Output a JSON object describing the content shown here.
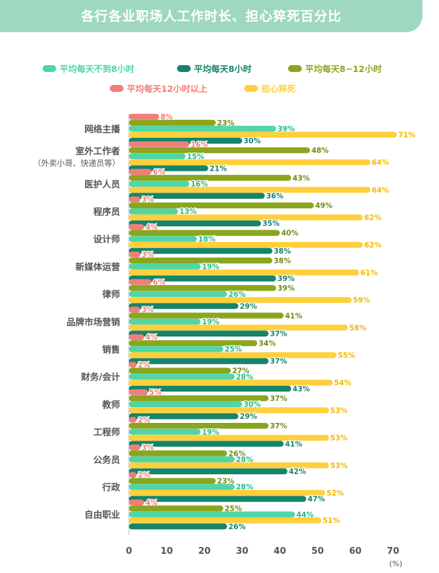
{
  "title": "各行各业职场人工作时长、担心猝死百分比",
  "colors": {
    "under8": "#4fd6a4",
    "eight": "#15846b",
    "eight_to_twelve": "#8aa61f",
    "over12": "#ef7f78",
    "worry": "#ffcf3d"
  },
  "chart_data": {
    "type": "bar",
    "orientation": "horizontal",
    "title": "各行各业职场人工作时长、担心猝死百分比",
    "unit": "(%)",
    "xlim": [
      0,
      70
    ],
    "xticks": [
      0,
      10,
      20,
      30,
      40,
      50,
      60,
      70
    ],
    "categories": [
      "网络主播",
      "室外工作者\n（外卖小哥、快递员等）",
      "医护人员",
      "程序员",
      "设计师",
      "新媒体运营",
      "律师",
      "品牌市场营销",
      "销售",
      "财务/会计",
      "教师",
      "工程师",
      "公务员",
      "行政",
      "自由职业"
    ],
    "legend": [
      "平均每天不到8小时",
      "平均每天8小时",
      "平均每天8~12小时",
      "平均每天12小时以上",
      "担心猝死"
    ],
    "series": [
      {
        "name": "平均每天12小时以上",
        "key": "over12",
        "values": [
          8,
          16,
          6,
          3,
          4,
          3,
          6,
          3,
          4,
          2,
          5,
          2,
          3,
          2,
          4
        ]
      },
      {
        "name": "平均每天8~12小时",
        "key": "eight_to_twelve",
        "values": [
          23,
          48,
          43,
          49,
          40,
          38,
          39,
          41,
          34,
          27,
          37,
          37,
          26,
          23,
          25
        ]
      },
      {
        "name": "平均每天不到8小时",
        "key": "under8",
        "values": [
          39,
          15,
          16,
          13,
          18,
          19,
          26,
          19,
          25,
          28,
          30,
          19,
          28,
          28,
          44
        ]
      },
      {
        "name": "担心猝死",
        "key": "worry",
        "values": [
          71,
          64,
          64,
          62,
          62,
          61,
          59,
          58,
          55,
          54,
          53,
          53,
          53,
          52,
          51
        ]
      },
      {
        "name": "平均每天8小时",
        "key": "eight",
        "values": [
          30,
          21,
          36,
          35,
          38,
          39,
          29,
          37,
          37,
          43,
          29,
          41,
          42,
          47,
          26
        ]
      }
    ],
    "grid": false,
    "legend_position": "top"
  }
}
